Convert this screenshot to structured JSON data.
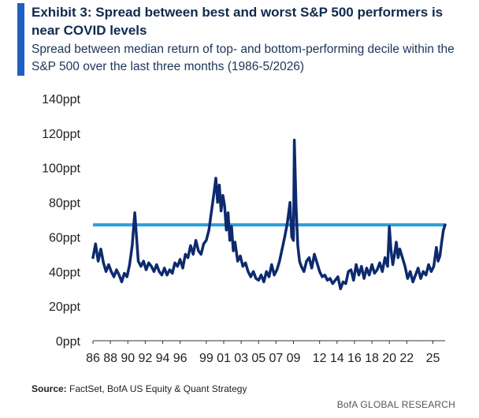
{
  "header": {
    "title": "Exhibit 3: Spread between best and worst S&P 500 performers is near COVID levels",
    "subtitle": "Spread between median return of top- and bottom-performing decile within the S&P 500 over the last three months (1986-5/2026)"
  },
  "footer": {
    "source_label": "Source:",
    "source_text": " FactSet, BofA US Equity & Quant Strategy",
    "brand": "BofA GLOBAL RESEARCH"
  },
  "colors": {
    "accent": "#1f5fbf",
    "series": "#0d2a6e",
    "reference_line": "#2b9fdc"
  },
  "chart_data": {
    "type": "line",
    "xlabel": "",
    "ylabel": "",
    "ylim": [
      0,
      140
    ],
    "xlim": [
      1986,
      2026.4
    ],
    "y_ticks": [
      0,
      20,
      40,
      60,
      80,
      100,
      120,
      140
    ],
    "y_tick_labels": [
      "0ppt",
      "20ppt",
      "40ppt",
      "60ppt",
      "80ppt",
      "100ppt",
      "120ppt",
      "140ppt"
    ],
    "x_ticks": [
      1986,
      1988,
      1990,
      1992,
      1994,
      1996,
      1999,
      2001,
      2003,
      2005,
      2007,
      2009,
      2012,
      2014,
      2016,
      2018,
      2020,
      2022,
      2025
    ],
    "x_tick_labels": [
      "86",
      "88",
      "90",
      "92",
      "94",
      "96",
      "99",
      "01",
      "03",
      "05",
      "07",
      "09",
      "12",
      "14",
      "16",
      "18",
      "20",
      "22",
      "25"
    ],
    "grid": false,
    "reference_line": {
      "y": 67
    },
    "series": [
      {
        "x": [
          1986.0,
          1986.3,
          1986.6,
          1986.9,
          1987.2,
          1987.5,
          1987.8,
          1988.1,
          1988.4,
          1988.7,
          1989.0,
          1989.3,
          1989.6,
          1989.9,
          1990.2,
          1990.5,
          1990.8,
          1991.0,
          1991.2,
          1991.5,
          1991.8,
          1992.1,
          1992.4,
          1992.7,
          1993.0,
          1993.3,
          1993.6,
          1993.9,
          1994.2,
          1994.5,
          1994.8,
          1995.1,
          1995.4,
          1995.7,
          1996.0,
          1996.3,
          1996.6,
          1996.9,
          1997.2,
          1997.5,
          1997.8,
          1998.1,
          1998.4,
          1998.7,
          1999.0,
          1999.3,
          1999.6,
          1999.9,
          2000.1,
          2000.3,
          2000.5,
          2000.7,
          2000.9,
          2001.1,
          2001.3,
          2001.5,
          2001.7,
          2001.9,
          2002.1,
          2002.3,
          2002.6,
          2002.9,
          2003.2,
          2003.5,
          2003.8,
          2004.1,
          2004.4,
          2004.7,
          2005.0,
          2005.3,
          2005.6,
          2005.9,
          2006.2,
          2006.5,
          2006.8,
          2007.1,
          2007.4,
          2007.7,
          2008.0,
          2008.3,
          2008.6,
          2008.8,
          2009.0,
          2009.1,
          2009.3,
          2009.5,
          2009.7,
          2009.9,
          2010.2,
          2010.5,
          2010.8,
          2011.1,
          2011.4,
          2011.7,
          2012.0,
          2012.3,
          2012.6,
          2012.9,
          2013.2,
          2013.5,
          2013.8,
          2014.1,
          2014.4,
          2014.7,
          2015.0,
          2015.3,
          2015.6,
          2015.9,
          2016.2,
          2016.5,
          2016.8,
          2017.1,
          2017.4,
          2017.7,
          2018.0,
          2018.3,
          2018.6,
          2018.9,
          2019.2,
          2019.5,
          2019.8,
          2020.0,
          2020.2,
          2020.4,
          2020.6,
          2020.8,
          2021.0,
          2021.2,
          2021.5,
          2021.8,
          2022.1,
          2022.4,
          2022.7,
          2023.0,
          2023.3,
          2023.6,
          2023.9,
          2024.2,
          2024.5,
          2024.8,
          2025.1,
          2025.4,
          2025.6,
          2025.8,
          2026.0,
          2026.2,
          2026.4
        ],
        "values": [
          48,
          56,
          46,
          53,
          45,
          40,
          44,
          40,
          37,
          41,
          38,
          34,
          39,
          37,
          44,
          55,
          74,
          60,
          46,
          43,
          46,
          41,
          45,
          43,
          40,
          44,
          40,
          38,
          42,
          38,
          41,
          39,
          45,
          43,
          47,
          42,
          50,
          48,
          55,
          50,
          58,
          52,
          50,
          56,
          58,
          64,
          75,
          86,
          94,
          80,
          90,
          75,
          84,
          78,
          64,
          74,
          58,
          66,
          52,
          57,
          46,
          49,
          43,
          45,
          40,
          37,
          40,
          36,
          35,
          38,
          34,
          40,
          37,
          44,
          38,
          41,
          46,
          53,
          60,
          68,
          80,
          60,
          58,
          116,
          78,
          55,
          46,
          43,
          40,
          46,
          48,
          42,
          50,
          45,
          40,
          37,
          38,
          35,
          36,
          33,
          35,
          37,
          30,
          34,
          33,
          40,
          41,
          35,
          44,
          38,
          43,
          36,
          42,
          38,
          44,
          39,
          41,
          45,
          40,
          48,
          43,
          66,
          52,
          44,
          50,
          57,
          48,
          53,
          48,
          43,
          36,
          40,
          34,
          38,
          42,
          36,
          40,
          38,
          44,
          40,
          43,
          54,
          46,
          49,
          57,
          64,
          67
        ]
      }
    ]
  }
}
